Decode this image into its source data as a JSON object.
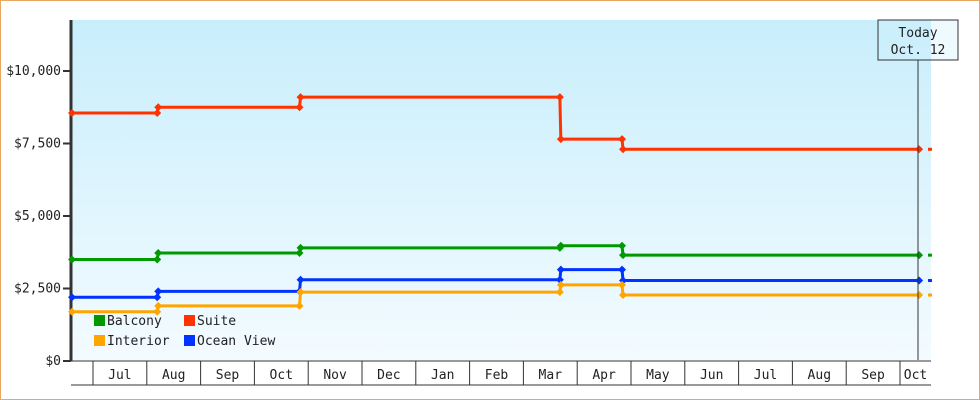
{
  "chart_data": {
    "type": "line",
    "subtype": "step",
    "ylim": [
      0,
      12000
    ],
    "y_ticks": [
      "$0",
      "$2,500",
      "$5,000",
      "$7,500",
      "$10,000"
    ],
    "y_tick_values": [
      0,
      2500,
      5000,
      7500,
      10000
    ],
    "x_ticks": [
      "Jul",
      "Aug",
      "Sep",
      "Oct",
      "Nov",
      "Dec",
      "Jan",
      "Feb",
      "Mar",
      "Apr",
      "May",
      "Jun",
      "Jul",
      "Aug",
      "Sep",
      "Oct"
    ],
    "x_range": [
      "Jun 19",
      "Oct 31"
    ],
    "dates": [
      "Jun 19",
      "Aug 7",
      "Oct 27",
      "Mar 22",
      "Apr 26",
      "Oct 12"
    ],
    "series": [
      {
        "name": "Suite",
        "color": "#ff3300",
        "values": [
          8550,
          8750,
          9100,
          7650,
          7300,
          7300
        ]
      },
      {
        "name": "Balcony",
        "color": "#009900",
        "values": [
          3500,
          3725,
          3900,
          3975,
          3650,
          3650
        ]
      },
      {
        "name": "Ocean View",
        "color": "#0033ff",
        "values": [
          2200,
          2400,
          2800,
          3150,
          2775,
          2775
        ]
      },
      {
        "name": "Interior",
        "color": "#ffa500",
        "values": [
          1700,
          1900,
          2375,
          2625,
          2275,
          2275
        ]
      }
    ],
    "legend": {
      "placement": "bottom-left",
      "order": [
        "Balcony",
        "Suite",
        "Interior",
        "Ocean View"
      ]
    },
    "today_marker": {
      "line1": "Today",
      "line2": "Oct. 12",
      "date": "Oct 12"
    },
    "grid": false,
    "background": {
      "top": "#c8eefc",
      "bottom": "#f3fbff"
    }
  }
}
